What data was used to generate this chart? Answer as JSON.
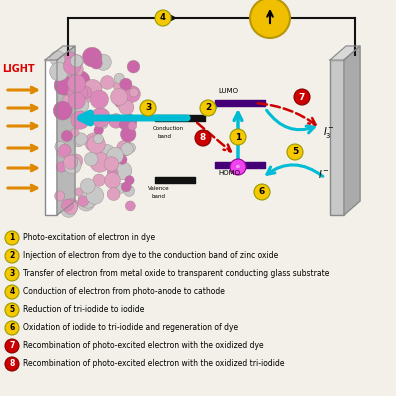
{
  "bg_color": "#f2f0e8",
  "legend_items": [
    {
      "num": "1",
      "text": "Photo-excitation of electron in dye",
      "color": "#f5c800"
    },
    {
      "num": "2",
      "text": "Injection of electron from dye to the conduction band of zinc oxide",
      "color": "#f5c800"
    },
    {
      "num": "3",
      "text": "Transfer of electron from metal oxide to transparent conducting glass substrate",
      "color": "#f5c800"
    },
    {
      "num": "4",
      "text": "Conduction of electron from photo-anode to cathode",
      "color": "#f5c800"
    },
    {
      "num": "5",
      "text": "Reduction of tri-iodide to iodide",
      "color": "#f5c800"
    },
    {
      "num": "6",
      "text": "Oxidation of iodide to tri-iodide and regeneration of dye",
      "color": "#f5c800"
    },
    {
      "num": "7",
      "text": "Recombination of photo-excited electron with the oxidized dye",
      "color": "#cc0000"
    },
    {
      "num": "8",
      "text": "Recombination of photo-excited electron with the oxidized tri-iodide",
      "color": "#cc0000"
    }
  ],
  "wire_color": "#111111",
  "light_color": "#e08800",
  "light_text_color": "#dd0000",
  "cyan_color": "#00bcd4",
  "red_dot_color": "#cc0000"
}
